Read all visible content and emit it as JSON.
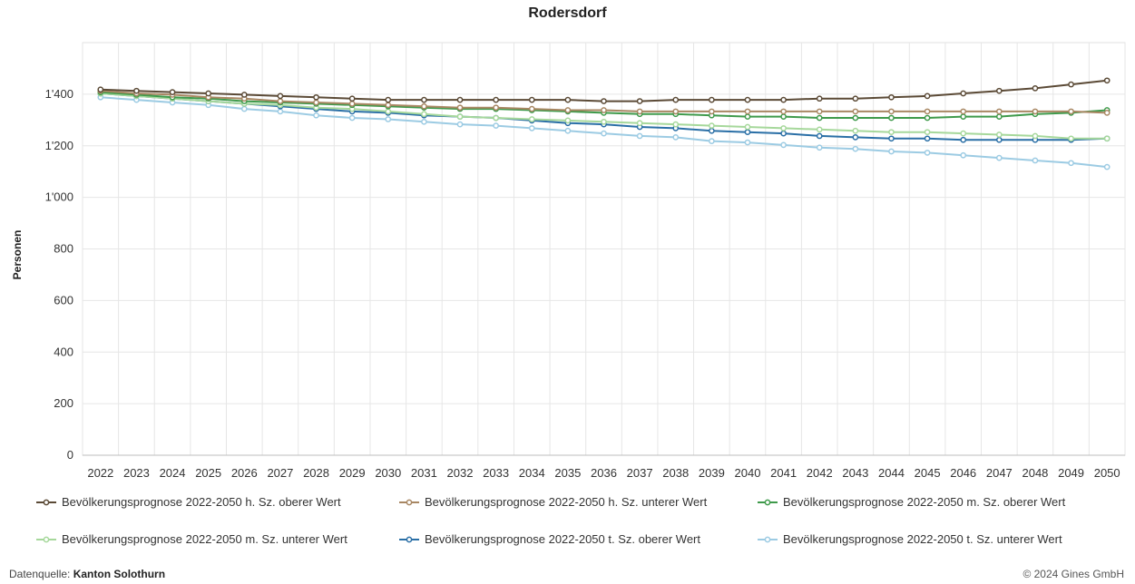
{
  "chart_data": {
    "type": "line",
    "title": "Rodersdorf",
    "ylabel": "Personen",
    "xlabel": "",
    "ylim": [
      0,
      1600
    ],
    "yticks": [
      0,
      200,
      400,
      600,
      800,
      1000,
      1200,
      1400
    ],
    "ytick_labels": [
      "0",
      "200",
      "400",
      "600",
      "800",
      "1'000",
      "1'200",
      "1'400"
    ],
    "x": [
      "2022",
      "2023",
      "2024",
      "2025",
      "2026",
      "2027",
      "2028",
      "2029",
      "2030",
      "2031",
      "2032",
      "2033",
      "2034",
      "2035",
      "2036",
      "2037",
      "2038",
      "2039",
      "2040",
      "2041",
      "2042",
      "2043",
      "2044",
      "2045",
      "2046",
      "2047",
      "2048",
      "2049",
      "2050"
    ],
    "grid": true,
    "legend_position": "bottom",
    "series": [
      {
        "name": "Bevölkerungsprognose 2022-2050 h. Sz. oberer Wert",
        "color": "#5b4a36",
        "values": [
          1418,
          1413,
          1408,
          1403,
          1398,
          1393,
          1388,
          1383,
          1378,
          1378,
          1378,
          1378,
          1378,
          1378,
          1373,
          1373,
          1378,
          1378,
          1378,
          1378,
          1383,
          1383,
          1388,
          1393,
          1403,
          1413,
          1423,
          1438,
          1453
        ]
      },
      {
        "name": "Bevölkerungsprognose 2022-2050 h. Sz. unterer Wert",
        "color": "#a88763",
        "values": [
          1413,
          1403,
          1398,
          1388,
          1383,
          1373,
          1368,
          1363,
          1358,
          1353,
          1348,
          1348,
          1343,
          1338,
          1338,
          1333,
          1333,
          1333,
          1333,
          1333,
          1333,
          1333,
          1333,
          1333,
          1333,
          1333,
          1333,
          1333,
          1328
        ]
      },
      {
        "name": "Bevölkerungsprognose 2022-2050 m. Sz. oberer Wert",
        "color": "#3f9a4b",
        "values": [
          1408,
          1398,
          1388,
          1383,
          1373,
          1368,
          1363,
          1358,
          1353,
          1348,
          1343,
          1343,
          1338,
          1333,
          1328,
          1323,
          1323,
          1318,
          1313,
          1313,
          1308,
          1308,
          1308,
          1308,
          1313,
          1313,
          1323,
          1328,
          1338
        ]
      },
      {
        "name": "Bevölkerungsprognose 2022-2050 m. Sz. unterer Wert",
        "color": "#a6d89b",
        "values": [
          1403,
          1393,
          1383,
          1373,
          1363,
          1358,
          1348,
          1343,
          1333,
          1323,
          1313,
          1308,
          1303,
          1298,
          1293,
          1288,
          1283,
          1278,
          1273,
          1268,
          1263,
          1258,
          1253,
          1253,
          1248,
          1243,
          1238,
          1228,
          1228
        ]
      },
      {
        "name": "Bevölkerungsprognose 2022-2050 t. Sz. oberer Wert",
        "color": "#2a6fa6",
        "values": [
          1403,
          1393,
          1383,
          1373,
          1363,
          1353,
          1343,
          1333,
          1328,
          1318,
          1313,
          1308,
          1298,
          1288,
          1283,
          1273,
          1268,
          1258,
          1253,
          1248,
          1238,
          1233,
          1228,
          1228,
          1223,
          1223,
          1223,
          1223,
          1228
        ]
      },
      {
        "name": "Bevölkerungsprognose 2022-2050 t. Sz. unterer Wert",
        "color": "#9ccbe3",
        "values": [
          1388,
          1378,
          1368,
          1358,
          1343,
          1333,
          1318,
          1308,
          1303,
          1293,
          1283,
          1278,
          1268,
          1258,
          1248,
          1238,
          1233,
          1218,
          1213,
          1203,
          1193,
          1188,
          1178,
          1173,
          1163,
          1153,
          1143,
          1133,
          1118
        ]
      }
    ]
  },
  "footer": {
    "source_prefix": "Datenquelle: ",
    "source_name": "Kanton Solothurn",
    "copyright": "© 2024 Gines GmbH"
  }
}
